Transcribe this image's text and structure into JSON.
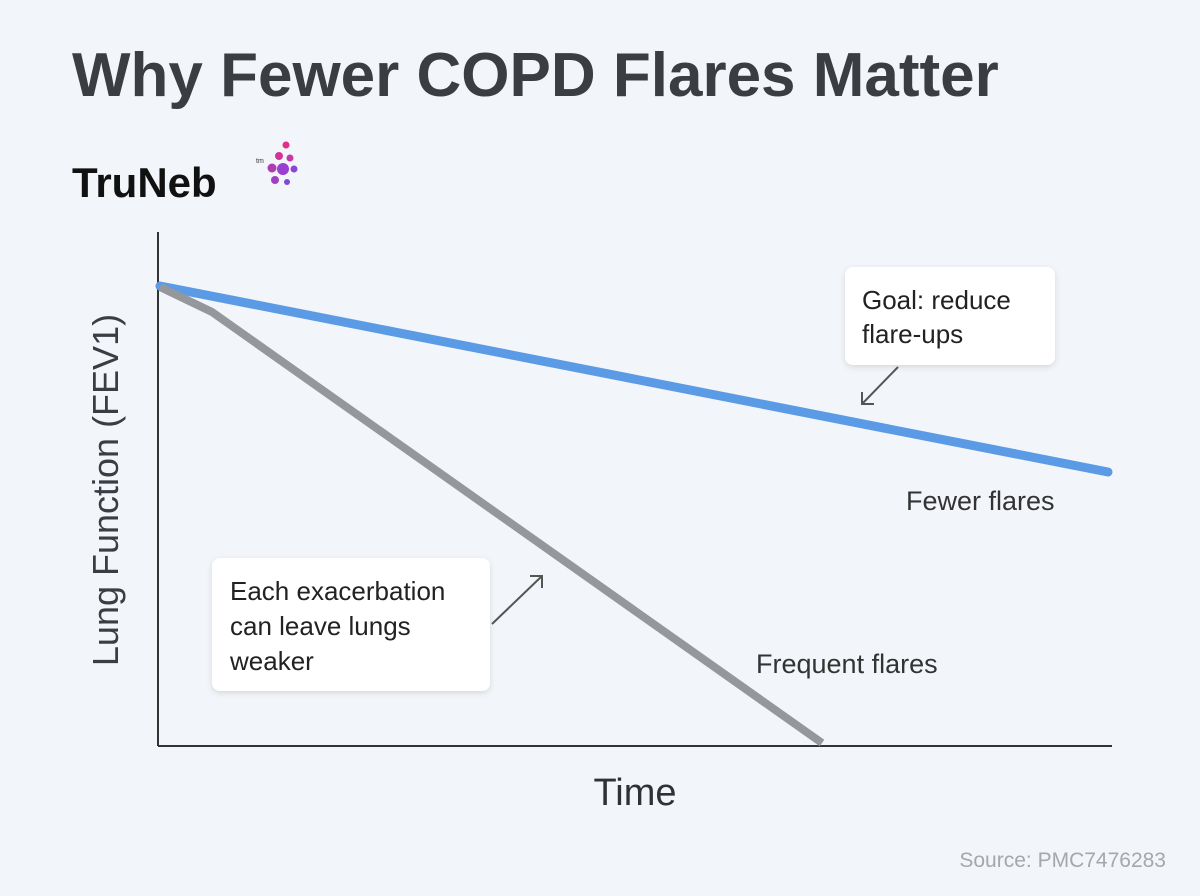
{
  "header": {
    "title": "Why Fewer COPD Flares Matter"
  },
  "logo": {
    "text": "TruNeb",
    "tm": "tm"
  },
  "axes": {
    "y_label": "Lung Function (FEV1)",
    "x_label": "Time"
  },
  "lines": [
    {
      "label": "Fewer flares"
    },
    {
      "label": "Frequent flares"
    }
  ],
  "annotations": [
    {
      "lines": [
        "Goal: reduce",
        "flare-ups"
      ]
    },
    {
      "lines": [
        "Each exacerbation",
        "can leave lungs",
        "weaker"
      ]
    }
  ],
  "footer": {
    "source": "Source: PMC7476283"
  }
}
